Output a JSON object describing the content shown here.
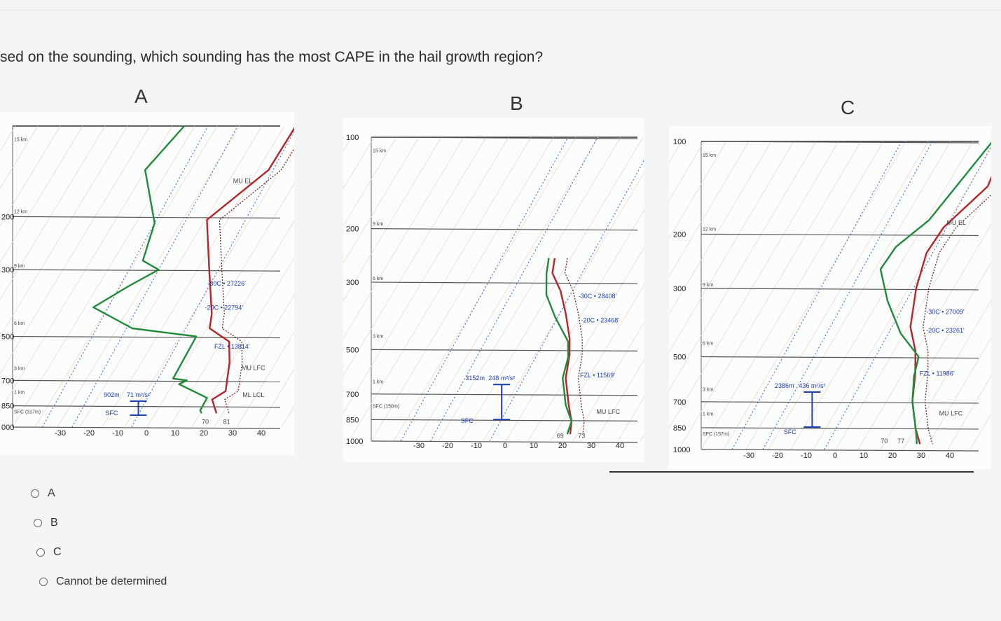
{
  "question": "sed on the sounding, which sounding has the most CAPE in the hail growth region?",
  "options": [
    "A",
    "B",
    "C",
    "Cannot be determined"
  ],
  "colors": {
    "temperature": "#b3262b",
    "dewpoint": "#1f8a3a",
    "parcel": "#a33",
    "isotherm": "#3a5fd0",
    "grid": "#555555",
    "annotation": "#1a3fb0"
  },
  "chart_data": [
    {
      "type": "line",
      "panel_label": "A",
      "pressure_ticks": [
        "200",
        "300",
        "500",
        "700",
        "850",
        "000"
      ],
      "height_ticks": [
        "15 km",
        "12 km",
        "9 km",
        "6 km",
        "3 km",
        "1 km",
        "SFC (317m)"
      ],
      "x_ticks": [
        "-30",
        "-20",
        "-10",
        "0",
        "10",
        "20",
        "30",
        "40"
      ],
      "annotations": [
        "MU EL",
        "-30C • 27226'",
        "-20C • 22794'",
        "FZL • 13814'",
        "MU LFC",
        "ML LCL",
        "902m",
        "71 m²/s²",
        "SFC",
        "70",
        "81"
      ],
      "series": [
        {
          "role": "temperature",
          "points": [
            [
              -0.5,
              100
            ],
            [
              -1.5,
              140
            ],
            [
              -13,
              205
            ],
            [
              -3,
              300
            ],
            [
              6,
              420
            ],
            [
              8,
              470
            ],
            [
              17,
              520
            ],
            [
              21,
              610
            ],
            [
              25,
              760
            ],
            [
              22,
              810
            ],
            [
              26,
              900
            ]
          ]
        },
        {
          "role": "dewpoint",
          "points": [
            [
              -38,
              100
            ],
            [
              -43,
              140
            ],
            [
              -30,
              210
            ],
            [
              -27,
              280
            ],
            [
              -20,
              300
            ],
            [
              -27,
              340
            ],
            [
              -35,
              400
            ],
            [
              -18,
              470
            ],
            [
              5,
              500
            ],
            [
              5,
              690
            ],
            [
              10,
              700
            ],
            [
              8,
              720
            ],
            [
              20,
              800
            ],
            [
              20,
              880
            ],
            [
              21,
              900
            ]
          ]
        }
      ]
    },
    {
      "type": "line",
      "panel_label": "B",
      "pressure_ticks": [
        "100",
        "200",
        "300",
        "500",
        "700",
        "850",
        "1000"
      ],
      "height_ticks": [
        "15 km",
        "9 km",
        "6 km",
        "3 km",
        "1 km",
        "SFC (150m)"
      ],
      "x_ticks": [
        "-30",
        "-20",
        "-10",
        "0",
        "10",
        "20",
        "30",
        "40"
      ],
      "annotations": [
        "-30C • 28408'",
        "-20C • 23468'",
        "FZL • 11569'",
        "MU LFC",
        "3152m",
        "248 m²/s²",
        "SFC",
        "69",
        "73"
      ],
      "series": [
        {
          "role": "temperature",
          "points": [
            [
              -12,
              250
            ],
            [
              -10,
              280
            ],
            [
              -4,
              320
            ],
            [
              2,
              380
            ],
            [
              8,
              460
            ],
            [
              11,
              520
            ],
            [
              14,
              620
            ],
            [
              20,
              760
            ],
            [
              24,
              860
            ],
            [
              26,
              950
            ]
          ]
        },
        {
          "role": "dewpoint",
          "points": [
            [
              -14,
              250
            ],
            [
              -12,
              280
            ],
            [
              -8,
              330
            ],
            [
              -1,
              390
            ],
            [
              8,
              470
            ],
            [
              11,
              530
            ],
            [
              13,
              620
            ],
            [
              19,
              760
            ],
            [
              24,
              860
            ],
            [
              25,
              950
            ]
          ]
        }
      ]
    },
    {
      "type": "line",
      "panel_label": "C",
      "pressure_ticks": [
        "100",
        "200",
        "300",
        "500",
        "700",
        "850",
        "1000"
      ],
      "height_ticks": [
        "15 km",
        "12 km",
        "9 km",
        "6 km",
        "3 km",
        "1 km",
        "SFC (157m)"
      ],
      "x_ticks": [
        "-30",
        "-20",
        "-10",
        "0",
        "10",
        "20",
        "30",
        "40"
      ],
      "annotations": [
        "MU EL",
        "-30C • 27009'",
        "-20C • 23261'",
        "FZL • 11986'",
        "MU LFC",
        "2386m",
        "436 m²/s²",
        "SFC",
        "70",
        "77"
      ],
      "series": [
        {
          "role": "temperature",
          "points": [
            [
              4,
              100
            ],
            [
              6,
              140
            ],
            [
              -1,
              190
            ],
            [
              -2,
              230
            ],
            [
              1,
              300
            ],
            [
              6,
              400
            ],
            [
              12,
              480
            ],
            [
              16,
              570
            ],
            [
              20,
              700
            ],
            [
              26,
              860
            ],
            [
              30,
              960
            ]
          ]
        },
        {
          "role": "dewpoint",
          "points": [
            [
              -0.5,
              100
            ],
            [
              -7,
              180
            ],
            [
              -13,
              220
            ],
            [
              -14,
              260
            ],
            [
              -6,
              330
            ],
            [
              4,
              420
            ],
            [
              14,
              500
            ],
            [
              16,
              580
            ],
            [
              20,
              700
            ],
            [
              26,
              860
            ],
            [
              29,
              960
            ]
          ]
        }
      ]
    }
  ]
}
